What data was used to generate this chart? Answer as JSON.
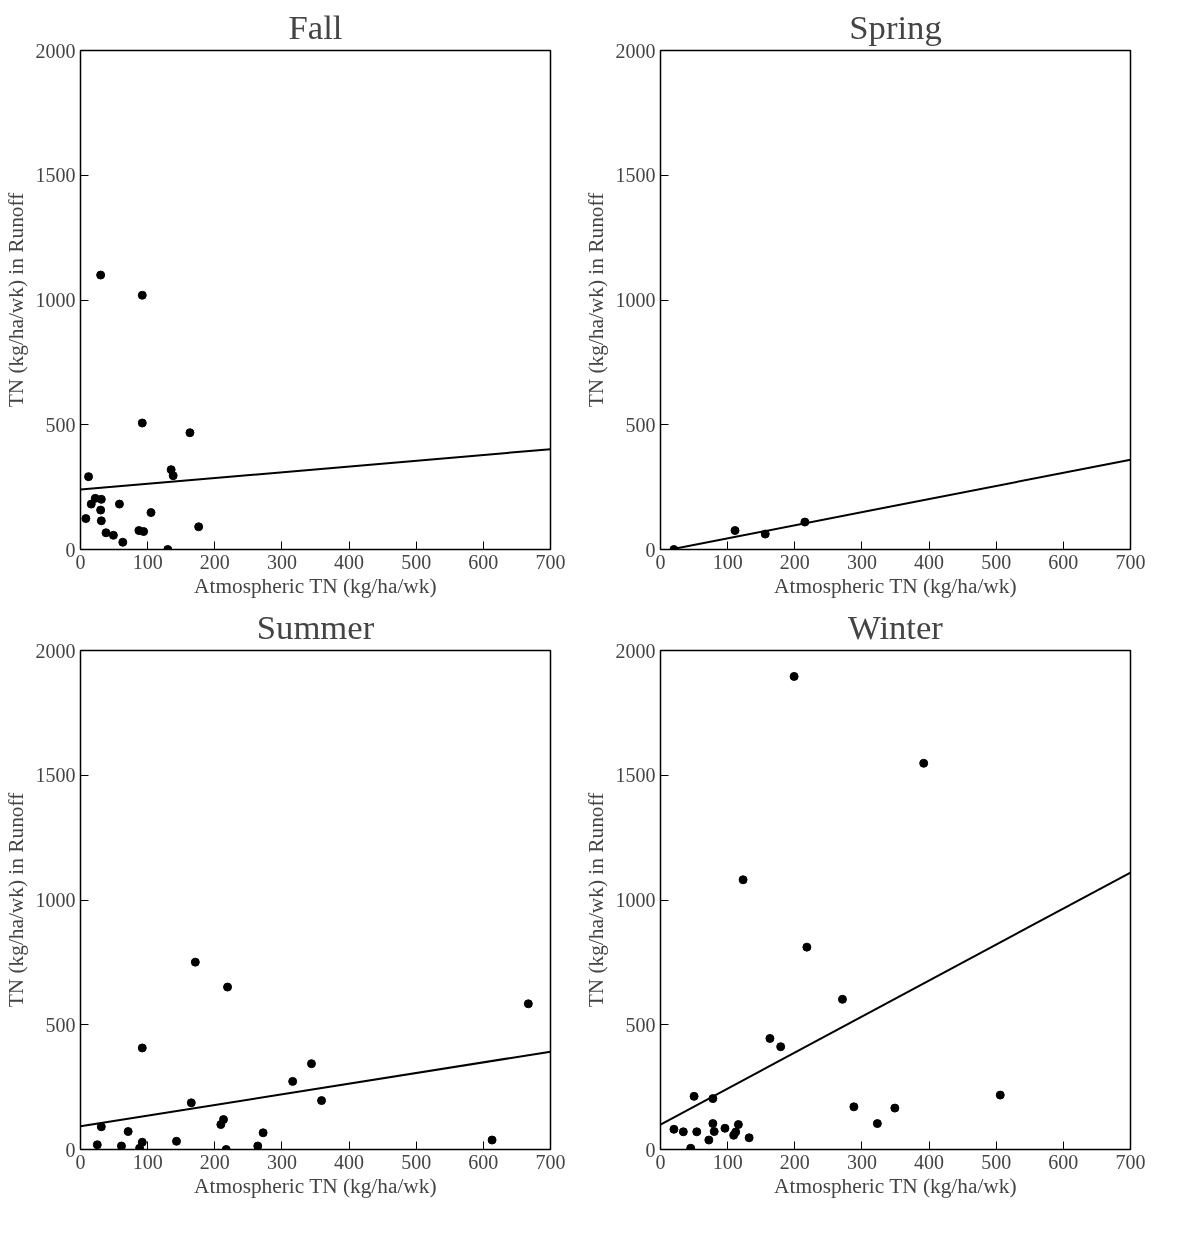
{
  "chart_data": [
    {
      "type": "scatter",
      "title": "Fall",
      "xlabel": "Atmospheric TN (kg/ha/wk)",
      "ylabel": "TN (kg/ha/wk) in Runoff",
      "xlim": [
        0,
        700
      ],
      "ylim": [
        0,
        2000
      ],
      "xticks": [
        0,
        100,
        200,
        300,
        400,
        500,
        600,
        700
      ],
      "yticks": [
        0,
        500,
        1000,
        1500,
        2000
      ],
      "series": [
        {
          "marker": "circle",
          "color": "#000000",
          "x": [
            30,
            92,
            92,
            163,
            135,
            138,
            12,
            31,
            22,
            16,
            58,
            30,
            105,
            8,
            31,
            38,
            49,
            63,
            87,
            94,
            176,
            130
          ],
          "values": [
            1100,
            1019,
            507,
            468,
            320,
            296,
            292,
            201,
            205,
            182,
            182,
            158,
            148,
            124,
            115,
            67,
            57,
            29,
            76,
            72,
            91,
            0
          ]
        },
        {
          "type": "line",
          "color": "#000000",
          "x": [
            0,
            700
          ],
          "values": [
            240,
            402
          ]
        }
      ]
    },
    {
      "type": "scatter",
      "title": "Spring",
      "xlabel": "Atmospheric TN (kg/ha/wk)",
      "ylabel": "TN (kg/ha/wk) in Runoff",
      "xlim": [
        0,
        700
      ],
      "ylim": [
        0,
        2000
      ],
      "xticks": [
        0,
        100,
        200,
        300,
        400,
        500,
        600,
        700
      ],
      "yticks": [
        0,
        500,
        1000,
        1500,
        2000
      ],
      "series": [
        {
          "marker": "circle",
          "color": "#000000",
          "x": [
            20,
            111,
            156,
            215
          ],
          "values": [
            0,
            76,
            62,
            110
          ]
        },
        {
          "type": "line",
          "color": "#000000",
          "x": [
            15,
            700
          ],
          "values": [
            0,
            360
          ]
        }
      ]
    },
    {
      "type": "scatter",
      "title": "Summer",
      "xlabel": "Atmospheric TN (kg/ha/wk)",
      "ylabel": "TN (kg/ha/wk) in Runoff",
      "xlim": [
        0,
        700
      ],
      "ylim": [
        0,
        2000
      ],
      "xticks": [
        0,
        100,
        200,
        300,
        400,
        500,
        600,
        700
      ],
      "yticks": [
        0,
        500,
        1000,
        1500,
        2000
      ],
      "series": [
        {
          "marker": "circle",
          "color": "#000000",
          "x": [
            171,
            219,
            667,
            92,
            344,
            316,
            359,
            165,
            213,
            209,
            31,
            71,
            272,
            25,
            61,
            92,
            143,
            613,
            264,
            217,
            88
          ],
          "values": [
            751,
            651,
            584,
            407,
            344,
            273,
            196,
            187,
            120,
            100,
            91,
            72,
            67,
            19,
            14,
            29,
            33,
            38,
            14,
            0,
            5
          ]
        },
        {
          "type": "line",
          "color": "#000000",
          "x": [
            0,
            700
          ],
          "values": [
            93,
            392
          ]
        }
      ]
    },
    {
      "type": "scatter",
      "title": "Winter",
      "xlabel": "Atmospheric TN (kg/ha/wk)",
      "ylabel": "TN (kg/ha/wk) in Runoff",
      "xlim": [
        0,
        700
      ],
      "ylim": [
        0,
        2000
      ],
      "xticks": [
        0,
        100,
        200,
        300,
        400,
        500,
        600,
        700
      ],
      "yticks": [
        0,
        500,
        1000,
        1500,
        2000
      ],
      "series": [
        {
          "marker": "circle",
          "color": "#000000",
          "x": [
            199,
            392,
            123,
            218,
            271,
            163,
            179,
            50,
            78,
            288,
            349,
            506,
            323,
            20,
            34,
            54,
            78,
            80,
            96,
            109,
            116,
            112,
            72,
            132,
            45
          ],
          "values": [
            1896,
            1548,
            1081,
            811,
            602,
            445,
            412,
            213,
            204,
            171,
            166,
            218,
            104,
            81,
            71,
            71,
            104,
            72,
            85,
            57,
            100,
            70,
            38,
            47,
            5
          ]
        },
        {
          "type": "line",
          "color": "#000000",
          "x": [
            0,
            700
          ],
          "values": [
            100,
            1110
          ]
        }
      ]
    }
  ]
}
